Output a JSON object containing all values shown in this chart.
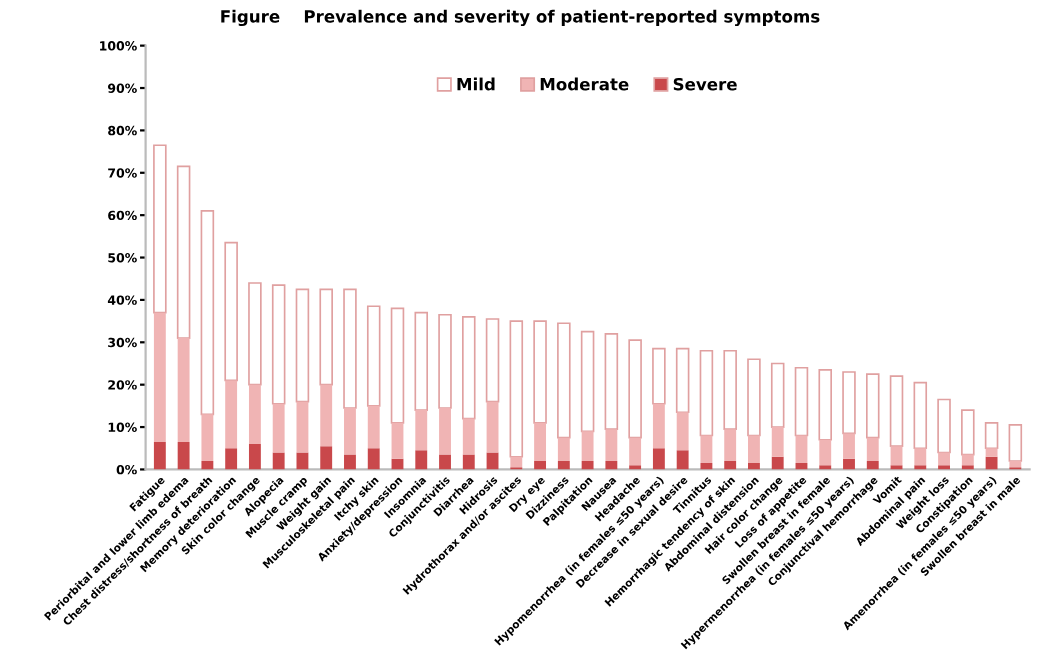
{
  "chart_data": {
    "type": "bar",
    "title": "Figure    Prevalence and severity of patient-reported symptoms",
    "categories": [
      "Fatigue",
      "Periorbital and lower limb edema",
      "Chest distress/shortness of breath",
      "Memory deterioration",
      "Skin color change",
      "Alopecia",
      "Muscle cramp",
      "Weight gain",
      "Musculoskeletal pain",
      "Itchy skin",
      "Anxiety/depression",
      "Insomnia",
      "Conjunctivitis",
      "Diarrhea",
      "Hidrosis",
      "Hydrothorax and/or ascites",
      "Dry eye",
      "Dizziness",
      "Palpitation",
      "Nausea",
      "Headache",
      "Hypomenorrhea (in females ≤50 years)",
      "Decrease in sexual desire",
      "Tinnitus",
      "Hemorrhagic tendency of skin",
      "Abdominal distension",
      "Hair color change",
      "Loss of appetite",
      "Swollen breast in female",
      "Hypermenorrhea (in females ≤50 years)",
      "Conjunctival hemorrhage",
      "Vomit",
      "Abdominal pain",
      "Weight loss",
      "Constipation",
      "Amenorrhea (in females ≤50 years)",
      "Swollen breast in male"
    ],
    "stacked": true,
    "series": [
      {
        "name": "Severe",
        "color": "#c9484b",
        "values": [
          6.5,
          6.5,
          2,
          5,
          6,
          4,
          4,
          5.5,
          3.5,
          5,
          2.5,
          4.5,
          3.5,
          3.5,
          4,
          0.5,
          2,
          2,
          2,
          2,
          1,
          5,
          4.5,
          1.5,
          2,
          1.5,
          3,
          1.5,
          1,
          2.5,
          2,
          1,
          1,
          1,
          1,
          3,
          0.5
        ]
      },
      {
        "name": "Moderate",
        "color": "#f0b4b4",
        "values": [
          30.5,
          24.5,
          11,
          16,
          14,
          11.5,
          12,
          14.5,
          11,
          10,
          8.5,
          9.5,
          11,
          8.5,
          12,
          2.5,
          9,
          5.5,
          7,
          7.5,
          6.5,
          10.5,
          9,
          6.5,
          7.5,
          6.5,
          7,
          6.5,
          6,
          6,
          5.5,
          4.5,
          4,
          3,
          2.5,
          2,
          1.5
        ]
      },
      {
        "name": "Mild",
        "color": "#ffffff",
        "values": [
          39.5,
          40.5,
          48,
          32.5,
          24,
          28,
          26.5,
          22.5,
          28,
          23.5,
          27,
          23,
          22,
          24,
          19.5,
          32,
          24,
          27,
          23.5,
          22.5,
          23,
          13,
          15,
          20,
          18.5,
          18,
          15,
          16,
          16.5,
          14.5,
          15,
          16.5,
          15.5,
          12.5,
          10.5,
          6,
          8.5
        ]
      }
    ],
    "ylim": [
      0,
      100
    ],
    "yticks": [
      {
        "value": 0,
        "label": "0%"
      },
      {
        "value": 10,
        "label": "10%"
      },
      {
        "value": 20,
        "label": "20%"
      },
      {
        "value": 30,
        "label": "30%"
      },
      {
        "value": 40,
        "label": "40%"
      },
      {
        "value": 50,
        "label": "50%"
      },
      {
        "value": 60,
        "label": "60%"
      },
      {
        "value": 70,
        "label": "70%"
      },
      {
        "value": 80,
        "label": "80%"
      },
      {
        "value": 90,
        "label": "90%"
      },
      {
        "value": 100,
        "label": "100%"
      }
    ],
    "grid": false,
    "legend": "top"
  }
}
